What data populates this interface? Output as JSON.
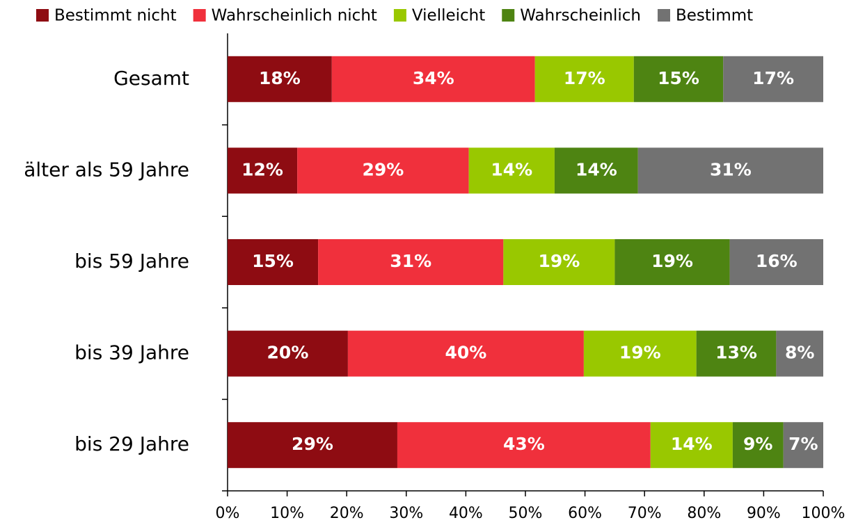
{
  "chart_data": {
    "type": "stacked-bar-horizontal",
    "categories": [
      "Gesamt",
      "älter als 59 Jahre",
      "bis 59 Jahre",
      "bis 39 Jahre",
      "bis 29 Jahre"
    ],
    "series": [
      {
        "name": "Bestimmt nicht",
        "color": "#8e0c12",
        "values": [
          17.5,
          11.7,
          15.2,
          20.2,
          28.5
        ],
        "value_labels": [
          "18%",
          "12%",
          "15%",
          "20%",
          "29%"
        ]
      },
      {
        "name": "Wahrscheinlich nicht",
        "color": "#f0303c",
        "values": [
          34.1,
          28.8,
          31.1,
          39.6,
          42.5
        ],
        "value_labels": [
          "34%",
          "29%",
          "31%",
          "40%",
          "43%"
        ]
      },
      {
        "name": "Vielleicht",
        "color": "#99c800",
        "values": [
          16.6,
          14.4,
          18.7,
          18.9,
          13.8
        ],
        "value_labels": [
          "17%",
          "14%",
          "19%",
          "19%",
          "14%"
        ]
      },
      {
        "name": "Wahrscheinlich",
        "color": "#4e8412",
        "values": [
          15.0,
          14.0,
          19.3,
          13.4,
          8.5
        ],
        "value_labels": [
          "15%",
          "14%",
          "19%",
          "13%",
          "9%"
        ]
      },
      {
        "name": "Bestimmt",
        "color": "#727272",
        "values": [
          16.8,
          31.1,
          15.7,
          7.9,
          6.7
        ],
        "value_labels": [
          "17%",
          "31%",
          "16%",
          "8%",
          "7%"
        ]
      }
    ],
    "xlim": [
      0,
      100
    ],
    "xticks": [
      {
        "value": 0,
        "label": "0%"
      },
      {
        "value": 10,
        "label": "10%"
      },
      {
        "value": 20,
        "label": "20%"
      },
      {
        "value": 30,
        "label": "30%"
      },
      {
        "value": 40,
        "label": "40%"
      },
      {
        "value": 50,
        "label": "50%"
      },
      {
        "value": 60,
        "label": "60%"
      },
      {
        "value": 70,
        "label": "70%"
      },
      {
        "value": 80,
        "label": "80%"
      },
      {
        "value": 90,
        "label": "90%"
      },
      {
        "value": 100,
        "label": "100%"
      }
    ],
    "legend": "top"
  }
}
